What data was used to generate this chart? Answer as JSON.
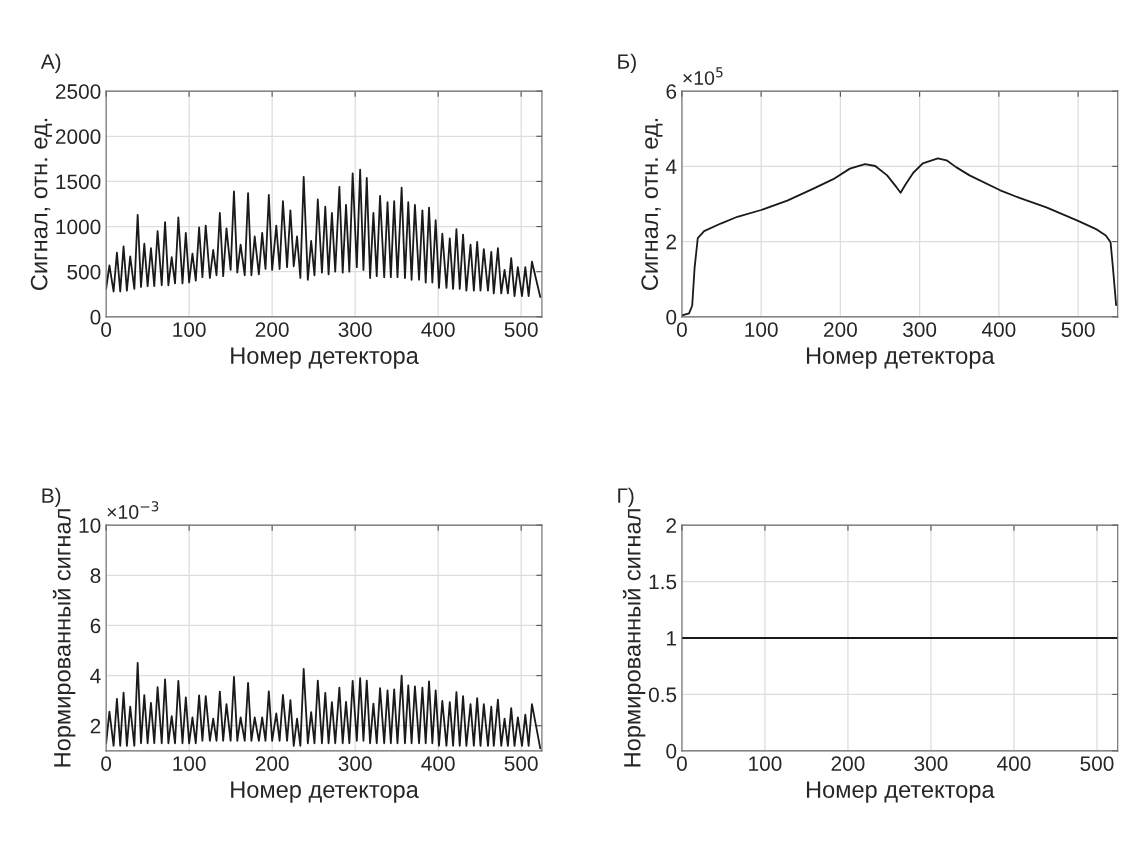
{
  "chart_data": [
    {
      "type": "line",
      "title": "А)",
      "xlabel": "Номер детектора",
      "ylabel": "Сигнал, отн. ед.",
      "xlim": [
        0,
        525
      ],
      "xticks": [
        0,
        100,
        200,
        300,
        400,
        500
      ],
      "ylim": [
        0,
        2500
      ],
      "yticks": [
        0,
        500,
        1000,
        1500,
        2000,
        2500
      ],
      "grid": true,
      "x": [
        0,
        4,
        9,
        13,
        17,
        21,
        25,
        29,
        34,
        38,
        42,
        46,
        50,
        54,
        58,
        62,
        67,
        71,
        75,
        79,
        83,
        87,
        92,
        96,
        100,
        104,
        108,
        112,
        116,
        120,
        125,
        129,
        133,
        137,
        141,
        145,
        150,
        154,
        158,
        162,
        167,
        171,
        175,
        179,
        184,
        188,
        192,
        196,
        200,
        205,
        209,
        213,
        218,
        222,
        226,
        230,
        234,
        238,
        243,
        247,
        251,
        255,
        260,
        264,
        268,
        272,
        276,
        281,
        285,
        289,
        293,
        297,
        302,
        306,
        310,
        314,
        318,
        322,
        326,
        330,
        335,
        339,
        343,
        347,
        351,
        356,
        360,
        364,
        368,
        372,
        377,
        381,
        385,
        389,
        393,
        397,
        401,
        405,
        410,
        414,
        418,
        422,
        426,
        430,
        434,
        439,
        443,
        447,
        451,
        455,
        460,
        464,
        467,
        472,
        476,
        480,
        484,
        488,
        492,
        496,
        501,
        505,
        509,
        513,
        523
      ],
      "series": [
        {
          "color": "#1a1a1a",
          "values": [
            310,
            570,
            280,
            710,
            280,
            780,
            290,
            670,
            310,
            1130,
            330,
            810,
            340,
            760,
            340,
            950,
            350,
            1050,
            350,
            660,
            370,
            1100,
            370,
            930,
            380,
            700,
            400,
            990,
            440,
            1010,
            430,
            740,
            460,
            1150,
            450,
            980,
            520,
            1390,
            490,
            800,
            460,
            1370,
            460,
            890,
            470,
            930,
            530,
            1350,
            520,
            1010,
            530,
            1280,
            550,
            1180,
            560,
            890,
            430,
            1550,
            410,
            840,
            460,
            1300,
            490,
            1220,
            470,
            1150,
            500,
            1440,
            490,
            1240,
            500,
            1590,
            550,
            1630,
            520,
            1540,
            430,
            1150,
            450,
            1340,
            440,
            1270,
            440,
            1280,
            440,
            1430,
            430,
            1270,
            410,
            1240,
            410,
            1180,
            380,
            1210,
            380,
            1070,
            320,
            920,
            320,
            870,
            310,
            970,
            310,
            910,
            290,
            800,
            290,
            830,
            290,
            750,
            290,
            720,
            260,
            760,
            260,
            520,
            260,
            650,
            230,
            550,
            230,
            550,
            230,
            610,
            220
          ]
        }
      ]
    },
    {
      "type": "line",
      "title": "Б)",
      "xlabel": "Номер детектора",
      "ylabel": "Сигнал, отн. ед.",
      "annotations": [
        "×10$^{5}$"
      ],
      "xlim": [
        0,
        550
      ],
      "xticks": [
        0,
        100,
        200,
        300,
        400,
        500
      ],
      "ylim": [
        0,
        6
      ],
      "yticks": [
        0,
        2,
        4,
        6
      ],
      "grid": true,
      "x": [
        0,
        9,
        13,
        16,
        20,
        28,
        49,
        70,
        100,
        133,
        166,
        191,
        212,
        231,
        244,
        259,
        271,
        276,
        282,
        292,
        304,
        323,
        334,
        346,
        363,
        401,
        426,
        460,
        500,
        522,
        535,
        541,
        544,
        548
      ],
      "series": [
        {
          "color": "#1a1a1a",
          "values": [
            0.04,
            0.09,
            0.3,
            1.3,
            2.09,
            2.28,
            2.48,
            2.66,
            2.84,
            3.09,
            3.41,
            3.66,
            3.94,
            4.06,
            4.01,
            3.76,
            3.44,
            3.3,
            3.51,
            3.83,
            4.08,
            4.21,
            4.16,
            3.98,
            3.76,
            3.37,
            3.16,
            2.91,
            2.55,
            2.34,
            2.16,
            1.98,
            1.3,
            0.31
          ]
        }
      ]
    },
    {
      "type": "line",
      "title": "В)",
      "xlabel": "Номер детектора",
      "ylabel": "Нормированный сигнал",
      "annotations": [
        "×10$^{−3}$"
      ],
      "xlim": [
        0,
        525
      ],
      "xticks": [
        0,
        100,
        200,
        300,
        400,
        500
      ],
      "ylim": [
        1,
        10
      ],
      "yticks": [
        2,
        4,
        6,
        8,
        10
      ],
      "grid": true,
      "x": [
        0,
        4,
        9,
        13,
        17,
        21,
        25,
        29,
        34,
        38,
        42,
        46,
        50,
        54,
        58,
        62,
        67,
        71,
        75,
        79,
        83,
        87,
        92,
        96,
        100,
        104,
        108,
        112,
        116,
        120,
        125,
        129,
        133,
        137,
        141,
        145,
        150,
        154,
        158,
        162,
        167,
        171,
        175,
        179,
        184,
        188,
        192,
        196,
        200,
        205,
        209,
        213,
        218,
        222,
        226,
        230,
        234,
        238,
        243,
        247,
        251,
        255,
        260,
        264,
        268,
        272,
        276,
        281,
        285,
        289,
        293,
        297,
        302,
        306,
        310,
        314,
        318,
        322,
        326,
        330,
        335,
        339,
        343,
        347,
        351,
        356,
        360,
        364,
        368,
        372,
        377,
        381,
        385,
        389,
        393,
        397,
        401,
        405,
        410,
        414,
        418,
        422,
        426,
        430,
        434,
        439,
        443,
        447,
        451,
        455,
        460,
        464,
        467,
        472,
        476,
        480,
        484,
        488,
        492,
        496,
        501,
        505,
        509,
        513,
        523
      ],
      "series": [
        {
          "color": "#1a1a1a",
          "values": [
            1.3,
            2.56,
            1.2,
            3.07,
            1.2,
            3.32,
            1.2,
            2.76,
            1.2,
            4.51,
            1.3,
            3.22,
            1.3,
            2.91,
            1.3,
            3.54,
            1.3,
            3.85,
            1.3,
            2.38,
            1.3,
            3.79,
            1.3,
            3.13,
            1.3,
            2.33,
            1.3,
            3.21,
            1.4,
            3.18,
            1.4,
            2.28,
            1.4,
            3.36,
            1.4,
            2.86,
            1.4,
            3.95,
            1.4,
            2.33,
            1.4,
            3.71,
            1.4,
            2.33,
            1.4,
            2.33,
            1.4,
            3.37,
            1.4,
            2.49,
            1.4,
            3.23,
            1.4,
            3.02,
            1.2,
            2.28,
            1.2,
            4.27,
            1.3,
            2.54,
            1.3,
            3.8,
            1.3,
            3.31,
            1.3,
            2.94,
            1.3,
            3.52,
            1.3,
            2.95,
            1.3,
            3.79,
            1.4,
            3.9,
            1.4,
            3.8,
            1.3,
            2.88,
            1.3,
            3.5,
            1.3,
            3.41,
            1.3,
            3.45,
            1.3,
            4.0,
            1.3,
            3.61,
            1.3,
            3.57,
            1.3,
            3.52,
            1.3,
            3.77,
            1.3,
            3.41,
            1.2,
            2.99,
            1.2,
            2.94,
            1.2,
            3.34,
            1.2,
            3.18,
            1.2,
            2.86,
            1.2,
            3.1,
            1.2,
            2.86,
            1.2,
            2.76,
            1.2,
            3.04,
            1.2,
            2.28,
            1.2,
            2.7,
            1.2,
            2.33,
            1.2,
            2.44,
            1.2,
            2.86,
            1.1
          ]
        }
      ]
    },
    {
      "type": "line",
      "title": "Г)",
      "xlabel": "Номер детектора",
      "ylabel": "Нормированный сигнал",
      "xlim": [
        0,
        525
      ],
      "xticks": [
        0,
        100,
        200,
        300,
        400,
        500
      ],
      "ylim": [
        0,
        2
      ],
      "yticks": [
        0,
        0.5,
        1,
        1.5,
        2
      ],
      "grid": true,
      "x": [
        0,
        525
      ],
      "series": [
        {
          "color": "#1a1a1a",
          "values": [
            1,
            1
          ]
        }
      ]
    }
  ]
}
